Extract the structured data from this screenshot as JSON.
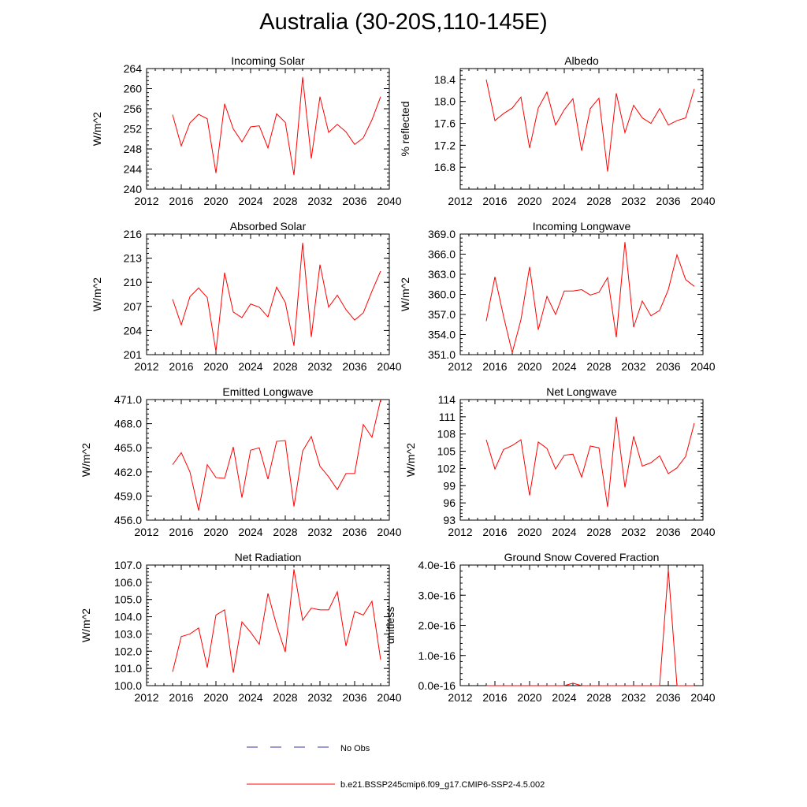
{
  "title": "Australia (30-20S,110-145E)",
  "colors": {
    "model": "#ff0000",
    "obs": "#3a3aa0",
    "axis": "#000000"
  },
  "legend": {
    "obs_label": "No Obs",
    "model_label": "b.e21.BSSP245cmip6.f09_g17.CMIP6-SSP2-4.5.002"
  },
  "chart_data": [
    {
      "type": "line",
      "title": "Incoming Solar",
      "ylabel": "W/m^2",
      "xlim": [
        2012,
        2040
      ],
      "xticks": [
        "2012",
        "2016",
        "2020",
        "2024",
        "2028",
        "2032",
        "2036",
        "2040"
      ],
      "ylim": [
        240,
        264
      ],
      "yticks": [
        "240",
        "244",
        "248",
        "252",
        "256",
        "260",
        "264"
      ],
      "ytick_values": [
        240,
        244,
        248,
        252,
        256,
        260,
        264
      ],
      "series": [
        {
          "name": "b.e21.BSSP245cmip6.f09_g17.CMIP6-SSP2-4.5.002",
          "x": [
            2015,
            2016,
            2017,
            2018,
            2019,
            2020,
            2021,
            2022,
            2023,
            2024,
            2025,
            2026,
            2027,
            2028,
            2029,
            2030,
            2031,
            2032,
            2033,
            2034,
            2035,
            2036,
            2037,
            2038,
            2039
          ],
          "values": [
            254.8,
            248.6,
            253.2,
            254.9,
            254.0,
            243.2,
            257.0,
            252.0,
            249.4,
            252.4,
            252.6,
            248.2,
            255.0,
            253.3,
            242.8,
            262.3,
            246.1,
            258.4,
            251.3,
            252.9,
            251.4,
            248.9,
            250.2,
            253.8,
            258.4
          ]
        }
      ]
    },
    {
      "type": "line",
      "title": "Albedo",
      "ylabel": "% reflected",
      "xlim": [
        2012,
        2040
      ],
      "xticks": [
        "2012",
        "2016",
        "2020",
        "2024",
        "2028",
        "2032",
        "2036",
        "2040"
      ],
      "ylim": [
        16.4,
        18.6
      ],
      "yticks": [
        "16.8",
        "17.2",
        "17.6",
        "18.0",
        "18.4"
      ],
      "ytick_values": [
        16.8,
        17.2,
        17.6,
        18.0,
        18.4
      ],
      "series": [
        {
          "name": "b.e21.BSSP245cmip6.f09_g17.CMIP6-SSP2-4.5.002",
          "x": [
            2015,
            2016,
            2017,
            2018,
            2019,
            2020,
            2021,
            2022,
            2023,
            2024,
            2025,
            2026,
            2027,
            2028,
            2029,
            2030,
            2031,
            2032,
            2033,
            2034,
            2035,
            2036,
            2037,
            2038,
            2039
          ],
          "values": [
            18.4,
            17.65,
            17.78,
            17.88,
            18.08,
            17.15,
            17.88,
            18.17,
            17.57,
            17.85,
            18.05,
            17.1,
            17.87,
            18.06,
            16.72,
            18.15,
            17.43,
            17.93,
            17.7,
            17.6,
            17.87,
            17.57,
            17.65,
            17.7,
            18.23
          ]
        }
      ]
    },
    {
      "type": "line",
      "title": "Absorbed Solar",
      "ylabel": "W/m^2",
      "xlim": [
        2012,
        2040
      ],
      "xticks": [
        "2012",
        "2016",
        "2020",
        "2024",
        "2028",
        "2032",
        "2036",
        "2040"
      ],
      "ylim": [
        201,
        216
      ],
      "yticks": [
        "201",
        "204",
        "207",
        "210",
        "213",
        "216"
      ],
      "ytick_values": [
        201,
        204,
        207,
        210,
        213,
        216
      ],
      "series": [
        {
          "name": "b.e21.BSSP245cmip6.f09_g17.CMIP6-SSP2-4.5.002",
          "x": [
            2015,
            2016,
            2017,
            2018,
            2019,
            2020,
            2021,
            2022,
            2023,
            2024,
            2025,
            2026,
            2027,
            2028,
            2029,
            2030,
            2031,
            2032,
            2033,
            2034,
            2035,
            2036,
            2037,
            2038,
            2039
          ],
          "values": [
            207.9,
            204.7,
            208.2,
            209.3,
            208.1,
            201.4,
            211.2,
            206.3,
            205.6,
            207.3,
            206.9,
            205.7,
            209.4,
            207.5,
            202.1,
            214.9,
            203.2,
            212.2,
            206.9,
            208.4,
            206.6,
            205.3,
            206.2,
            208.9,
            211.4
          ]
        }
      ]
    },
    {
      "type": "line",
      "title": "Incoming Longwave",
      "ylabel": "W/m^2",
      "xlim": [
        2012,
        2040
      ],
      "xticks": [
        "2012",
        "2016",
        "2020",
        "2024",
        "2028",
        "2032",
        "2036",
        "2040"
      ],
      "ylim": [
        351.0,
        369.0
      ],
      "yticks": [
        "351.0",
        "354.0",
        "357.0",
        "360.0",
        "363.0",
        "366.0",
        "369.0"
      ],
      "ytick_values": [
        351,
        354,
        357,
        360,
        363,
        366,
        369
      ],
      "series": [
        {
          "name": "b.e21.BSSP245cmip6.f09_g17.CMIP6-SSP2-4.5.002",
          "x": [
            2015,
            2016,
            2017,
            2018,
            2019,
            2020,
            2021,
            2022,
            2023,
            2024,
            2025,
            2026,
            2027,
            2028,
            2029,
            2030,
            2031,
            2032,
            2033,
            2034,
            2035,
            2036,
            2037,
            2038,
            2039
          ],
          "values": [
            356.0,
            362.6,
            356.7,
            351.3,
            356.2,
            364.1,
            354.7,
            359.7,
            357.0,
            360.5,
            360.5,
            360.7,
            359.9,
            360.3,
            362.5,
            353.6,
            367.8,
            355.1,
            359.0,
            356.8,
            357.6,
            360.7,
            365.9,
            362.2,
            361.2
          ]
        }
      ]
    },
    {
      "type": "line",
      "title": "Emitted Longwave",
      "ylabel": "W/m^2",
      "xlim": [
        2012,
        2040
      ],
      "xticks": [
        "2012",
        "2016",
        "2020",
        "2024",
        "2028",
        "2032",
        "2036",
        "2040"
      ],
      "ylim": [
        456.0,
        471.0
      ],
      "yticks": [
        "456.0",
        "459.0",
        "462.0",
        "465.0",
        "468.0",
        "471.0"
      ],
      "ytick_values": [
        456,
        459,
        462,
        465,
        468,
        471
      ],
      "series": [
        {
          "name": "b.e21.BSSP245cmip6.f09_g17.CMIP6-SSP2-4.5.002",
          "x": [
            2015,
            2016,
            2017,
            2018,
            2019,
            2020,
            2021,
            2022,
            2023,
            2024,
            2025,
            2026,
            2027,
            2028,
            2029,
            2030,
            2031,
            2032,
            2033,
            2034,
            2035,
            2036,
            2037,
            2038,
            2039
          ],
          "values": [
            462.9,
            464.4,
            462.0,
            457.2,
            462.9,
            461.3,
            461.2,
            465.1,
            458.8,
            464.7,
            465.0,
            461.1,
            465.8,
            465.9,
            457.7,
            464.6,
            466.4,
            462.7,
            461.4,
            459.8,
            461.8,
            461.8,
            467.9,
            466.3,
            471.0
          ]
        }
      ]
    },
    {
      "type": "line",
      "title": "Net Longwave",
      "ylabel": "W/m^2",
      "xlim": [
        2012,
        2040
      ],
      "xticks": [
        "2012",
        "2016",
        "2020",
        "2024",
        "2028",
        "2032",
        "2036",
        "2040"
      ],
      "ylim": [
        93,
        114
      ],
      "yticks": [
        "93",
        "96",
        "99",
        "102",
        "105",
        "108",
        "111",
        "114"
      ],
      "ytick_values": [
        93,
        96,
        99,
        102,
        105,
        108,
        111,
        114
      ],
      "series": [
        {
          "name": "b.e21.BSSP245cmip6.f09_g17.CMIP6-SSP2-4.5.002",
          "x": [
            2015,
            2016,
            2017,
            2018,
            2019,
            2020,
            2021,
            2022,
            2023,
            2024,
            2025,
            2026,
            2027,
            2028,
            2029,
            2030,
            2031,
            2032,
            2033,
            2034,
            2035,
            2036,
            2037,
            2038,
            2039
          ],
          "values": [
            107.0,
            101.9,
            105.3,
            106.0,
            107.0,
            97.3,
            106.6,
            105.5,
            101.9,
            104.3,
            104.5,
            100.5,
            105.9,
            105.6,
            95.3,
            111.0,
            98.7,
            107.6,
            102.4,
            103.0,
            104.2,
            101.1,
            102.1,
            104.1,
            109.9
          ]
        }
      ]
    },
    {
      "type": "line",
      "title": "Net Radiation",
      "ylabel": "W/m^2",
      "xlim": [
        2012,
        2040
      ],
      "xticks": [
        "2012",
        "2016",
        "2020",
        "2024",
        "2028",
        "2032",
        "2036",
        "2040"
      ],
      "ylim": [
        100.0,
        107.0
      ],
      "yticks": [
        "100.0",
        "101.0",
        "102.0",
        "103.0",
        "104.0",
        "105.0",
        "106.0",
        "107.0"
      ],
      "ytick_values": [
        100,
        101,
        102,
        103,
        104,
        105,
        106,
        107
      ],
      "series": [
        {
          "name": "b.e21.BSSP245cmip6.f09_g17.CMIP6-SSP2-4.5.002",
          "x": [
            2015,
            2016,
            2017,
            2018,
            2019,
            2020,
            2021,
            2022,
            2023,
            2024,
            2025,
            2026,
            2027,
            2028,
            2029,
            2030,
            2031,
            2032,
            2033,
            2034,
            2035,
            2036,
            2037,
            2038,
            2039
          ],
          "values": [
            100.8,
            102.85,
            103.0,
            103.35,
            101.05,
            104.1,
            104.4,
            100.75,
            103.7,
            103.1,
            102.4,
            105.35,
            103.5,
            101.95,
            106.75,
            103.8,
            104.5,
            104.4,
            104.4,
            105.45,
            102.3,
            104.3,
            104.1,
            104.9,
            101.5
          ]
        }
      ]
    },
    {
      "type": "line",
      "title": "Ground Snow Covered Fraction",
      "ylabel": "unitless",
      "xlim": [
        2012,
        2040
      ],
      "xticks": [
        "2012",
        "2016",
        "2020",
        "2024",
        "2028",
        "2032",
        "2036",
        "2040"
      ],
      "ylim": [
        0,
        4e-16
      ],
      "yticks": [
        "0.0e-16",
        "1.0e-16",
        "2.0e-16",
        "3.0e-16",
        "4.0e-16"
      ],
      "ytick_values": [
        0,
        1e-16,
        2e-16,
        3e-16,
        4e-16
      ],
      "series": [
        {
          "name": "b.e21.BSSP245cmip6.f09_g17.CMIP6-SSP2-4.5.002",
          "x": [
            2015,
            2016,
            2017,
            2018,
            2019,
            2020,
            2021,
            2022,
            2023,
            2024,
            2025,
            2026,
            2027,
            2028,
            2029,
            2030,
            2031,
            2032,
            2033,
            2034,
            2035,
            2036,
            2037,
            2038,
            2039
          ],
          "values": [
            0,
            0,
            0,
            0,
            0,
            0,
            0,
            0,
            0,
            0,
            8e-18,
            0,
            0,
            0,
            0,
            0,
            0,
            0,
            0,
            0,
            0,
            3.85e-16,
            0,
            0,
            0
          ]
        }
      ]
    }
  ]
}
